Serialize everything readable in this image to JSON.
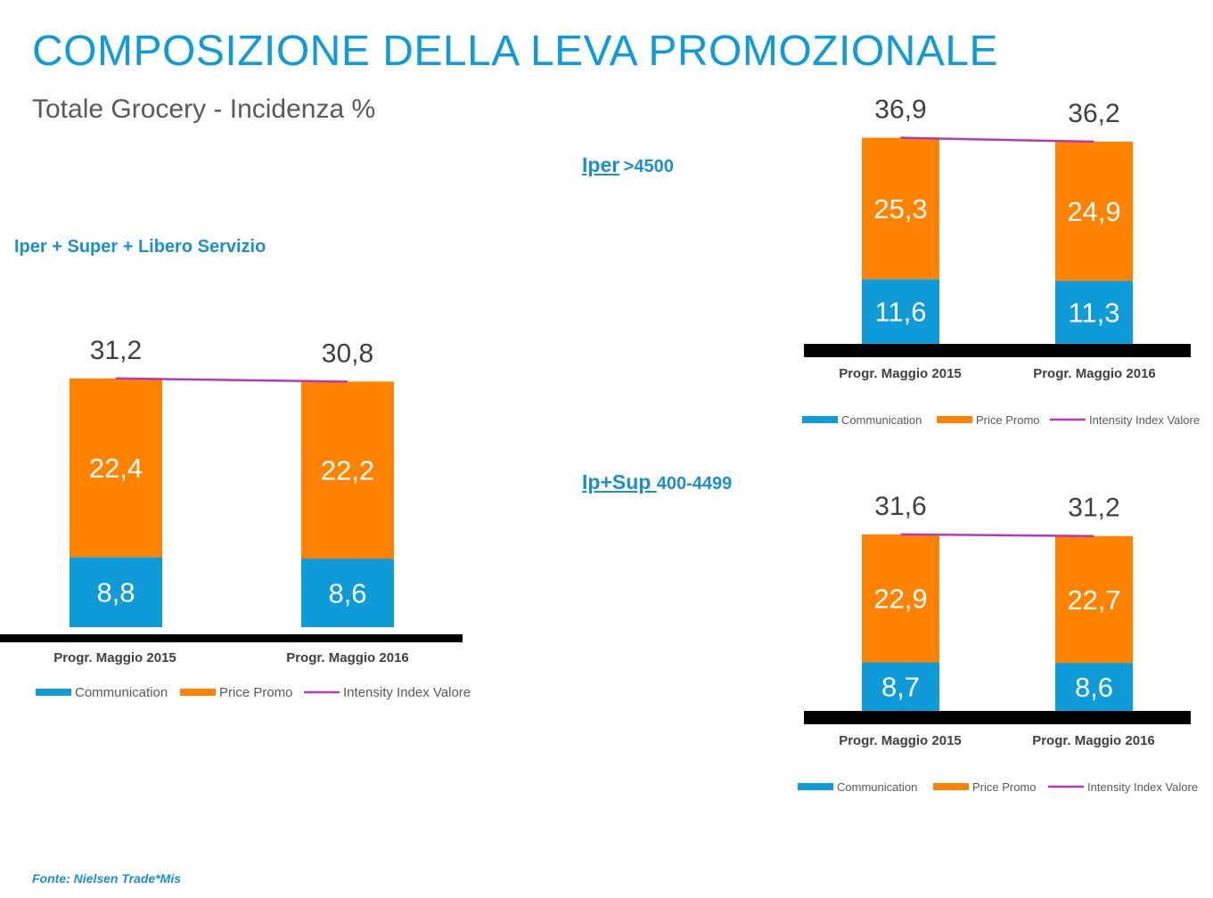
{
  "title": "COMPOSIZIONE DELLA LEVA PROMOZIONALE",
  "subtitle": "Totale Grocery - Incidenza %",
  "footer": "Fonte: Nielsen Trade*Mis",
  "colors": {
    "communication": "#0f9ad8",
    "price_promo": "#ff8200",
    "intensity": "#b23ab8",
    "axis": "#000000",
    "title": "#0f9ad8",
    "label": "#1a8fce"
  },
  "labels": {
    "main": {
      "name": "Iper + Super + Libero Servizio"
    },
    "iper": {
      "name": "Iper",
      "range": ">4500"
    },
    "ipsup": {
      "name": "Ip+Sup ",
      "range": "400-4499"
    }
  },
  "chart_data": [
    {
      "id": "main",
      "type": "bar",
      "stacked": true,
      "categories": [
        "Progr. Maggio 2015",
        "Progr. Maggio 2016"
      ],
      "series": [
        {
          "name": "Communication",
          "values": [
            8.8,
            8.6
          ],
          "labels": [
            "8,8",
            "8,6"
          ]
        },
        {
          "name": "Price Promo",
          "values": [
            22.4,
            22.2
          ],
          "labels": [
            "22,4",
            "22,2"
          ]
        },
        {
          "name": "Intensity Index Valore",
          "type": "line",
          "values": [
            31.2,
            30.8
          ],
          "labels": [
            "31,2",
            "30,8"
          ]
        }
      ],
      "legend": [
        "Communication",
        "Price Promo",
        "Intensity Index Valore"
      ],
      "legend_position": "bottom"
    },
    {
      "id": "iper",
      "type": "bar",
      "stacked": true,
      "categories": [
        "Progr. Maggio 2015",
        "Progr. Maggio 2016"
      ],
      "series": [
        {
          "name": "Communication",
          "values": [
            11.6,
            11.3
          ],
          "labels": [
            "11,6",
            "11,3"
          ]
        },
        {
          "name": "Price Promo",
          "values": [
            25.3,
            24.9
          ],
          "labels": [
            "25,3",
            "24,9"
          ]
        },
        {
          "name": "Intensity Index Valore",
          "type": "line",
          "values": [
            36.9,
            36.2
          ],
          "labels": [
            "36,9",
            "36,2"
          ]
        }
      ],
      "legend": [
        "Communication",
        "Price Promo",
        "Intensity Index Valore"
      ],
      "legend_position": "bottom"
    },
    {
      "id": "ipsup",
      "type": "bar",
      "stacked": true,
      "categories": [
        "Progr. Maggio 2015",
        "Progr. Maggio 2016"
      ],
      "series": [
        {
          "name": "Communication",
          "values": [
            8.7,
            8.6
          ],
          "labels": [
            "8,7",
            "8,6"
          ]
        },
        {
          "name": "Price Promo",
          "values": [
            22.9,
            22.7
          ],
          "labels": [
            "22,9",
            "22,7"
          ]
        },
        {
          "name": "Intensity Index Valore",
          "type": "line",
          "values": [
            31.6,
            31.2
          ],
          "labels": [
            "31,6",
            "31,2"
          ]
        }
      ],
      "legend": [
        "Communication",
        "Price Promo",
        "Intensity Index Valore"
      ],
      "legend_position": "bottom"
    }
  ]
}
